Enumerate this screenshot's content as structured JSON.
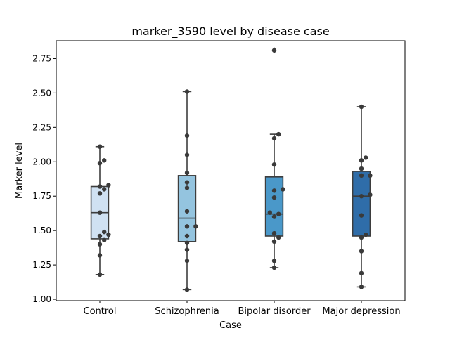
{
  "chart_data": {
    "type": "box",
    "title": "marker_3590 level by disease case",
    "xlabel": "Case",
    "ylabel": "Marker level",
    "ylim": [
      0.99,
      2.88
    ],
    "yticks": [
      1.0,
      1.25,
      1.5,
      1.75,
      2.0,
      2.25,
      2.5,
      2.75
    ],
    "ytick_labels": [
      "1.00",
      "1.25",
      "1.50",
      "1.75",
      "2.00",
      "2.25",
      "2.50",
      "2.75"
    ],
    "categories": [
      "Control",
      "Schizophrenia",
      "Bipolar disorder",
      "Major depression"
    ],
    "box_colors": [
      "#d0e1f2",
      "#94c4df",
      "#4a98c9",
      "#2f6da9"
    ],
    "grid": false,
    "legend": "none",
    "boxes": [
      {
        "category": "Control",
        "whisker_low": 1.18,
        "q1": 1.44,
        "median": 1.63,
        "q3": 1.82,
        "whisker_high": 2.11,
        "outliers": []
      },
      {
        "category": "Schizophrenia",
        "whisker_low": 1.07,
        "q1": 1.42,
        "median": 1.59,
        "q3": 1.9,
        "whisker_high": 2.51,
        "outliers": []
      },
      {
        "category": "Bipolar disorder",
        "whisker_low": 1.23,
        "q1": 1.46,
        "median": 1.62,
        "q3": 1.89,
        "whisker_high": 2.2,
        "outliers": [
          2.81
        ]
      },
      {
        "category": "Major depression",
        "whisker_low": 1.09,
        "q1": 1.46,
        "median": 1.75,
        "q3": 1.93,
        "whisker_high": 2.4,
        "outliers": []
      }
    ],
    "points": [
      {
        "category": "Control",
        "values": [
          2.11,
          2.01,
          1.99,
          1.82,
          1.8,
          1.83,
          1.77,
          1.63,
          1.49,
          1.47,
          1.46,
          1.43,
          1.4,
          1.32,
          1.18
        ]
      },
      {
        "category": "Schizophrenia",
        "values": [
          2.51,
          2.19,
          2.05,
          1.92,
          1.85,
          1.81,
          1.64,
          1.53,
          1.53,
          1.46,
          1.41,
          1.36,
          1.28,
          1.07
        ]
      },
      {
        "category": "Bipolar disorder",
        "values": [
          2.81,
          2.2,
          2.17,
          1.98,
          1.8,
          1.79,
          1.74,
          1.63,
          1.62,
          1.6,
          1.48,
          1.45,
          1.42,
          1.28,
          1.23
        ]
      },
      {
        "category": "Major depression",
        "values": [
          2.4,
          2.03,
          2.01,
          1.95,
          1.9,
          1.9,
          1.76,
          1.75,
          1.61,
          1.47,
          1.45,
          1.35,
          1.19,
          1.09
        ]
      }
    ]
  }
}
